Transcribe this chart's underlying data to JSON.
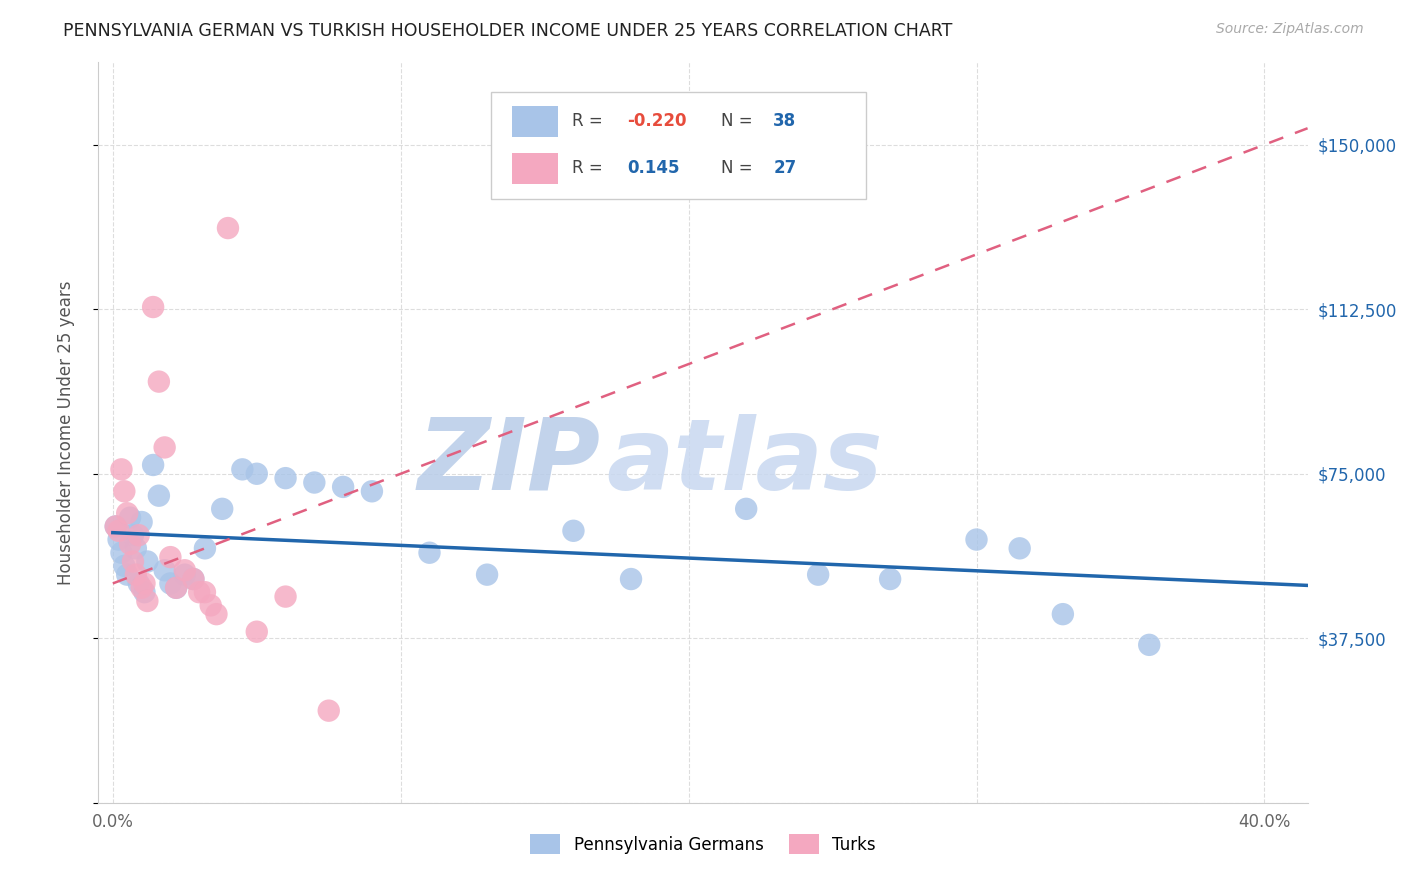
{
  "title": "PENNSYLVANIA GERMAN VS TURKISH HOUSEHOLDER INCOME UNDER 25 YEARS CORRELATION CHART",
  "source": "Source: ZipAtlas.com",
  "ylabel": "Householder Income Under 25 years",
  "xlim": [
    -0.005,
    0.415
  ],
  "ylim": [
    0,
    168750
  ],
  "xticks": [
    0.0,
    0.1,
    0.2,
    0.3,
    0.4
  ],
  "xticklabels": [
    "0.0%",
    "",
    "",
    "",
    "40.0%"
  ],
  "yticks": [
    0,
    37500,
    75000,
    112500,
    150000
  ],
  "yticklabels_right": [
    "",
    "$37,500",
    "$75,000",
    "$112,500",
    "$150,000"
  ],
  "pg_color": "#a8c4e8",
  "turk_color": "#f4a8c0",
  "pg_line_color": "#2166ac",
  "turk_line_color": "#e06080",
  "watermark_color": "#c8d8f0",
  "pg_x": [
    0.001,
    0.002,
    0.003,
    0.004,
    0.005,
    0.006,
    0.007,
    0.008,
    0.009,
    0.01,
    0.011,
    0.012,
    0.014,
    0.016,
    0.018,
    0.02,
    0.022,
    0.025,
    0.028,
    0.032,
    0.038,
    0.045,
    0.05,
    0.06,
    0.07,
    0.08,
    0.09,
    0.11,
    0.13,
    0.16,
    0.18,
    0.22,
    0.245,
    0.27,
    0.3,
    0.315,
    0.33,
    0.36
  ],
  "pg_y": [
    63000,
    60000,
    57000,
    54000,
    52000,
    65000,
    61000,
    58000,
    50000,
    64000,
    48000,
    55000,
    77000,
    70000,
    53000,
    50000,
    49000,
    52000,
    51000,
    58000,
    67000,
    76000,
    75000,
    74000,
    73000,
    72000,
    71000,
    57000,
    52000,
    62000,
    51000,
    67000,
    52000,
    51000,
    60000,
    58000,
    43000,
    36000
  ],
  "turk_x": [
    0.001,
    0.002,
    0.003,
    0.004,
    0.005,
    0.006,
    0.007,
    0.008,
    0.009,
    0.01,
    0.011,
    0.012,
    0.014,
    0.016,
    0.018,
    0.02,
    0.022,
    0.025,
    0.028,
    0.03,
    0.032,
    0.034,
    0.036,
    0.04,
    0.05,
    0.06,
    0.075
  ],
  "turk_y": [
    63000,
    62000,
    76000,
    71000,
    66000,
    59000,
    55000,
    52000,
    61000,
    49000,
    50000,
    46000,
    113000,
    96000,
    81000,
    56000,
    49000,
    53000,
    51000,
    48000,
    48000,
    45000,
    43000,
    131000,
    39000,
    47000,
    21000
  ],
  "legend_items": [
    {
      "r": "-0.220",
      "n": "38",
      "r_color": "#e74c3c",
      "n_color": "#2166ac"
    },
    {
      "r": "0.145",
      "n": "27",
      "r_color": "#2166ac",
      "n_color": "#2166ac"
    }
  ]
}
